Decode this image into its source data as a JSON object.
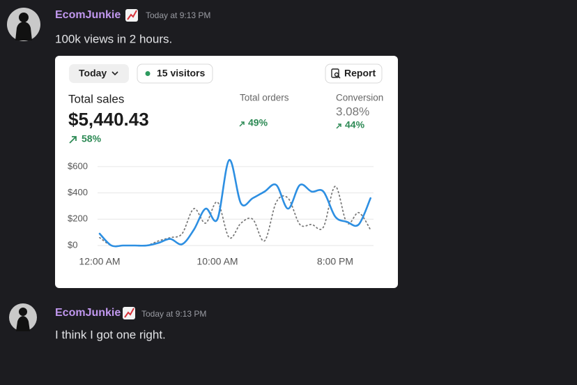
{
  "messages": [
    {
      "author": "EcomJunkie",
      "timestamp": "Today at 9:13 PM",
      "text": "100k views in 2 hours."
    },
    {
      "author": "EcomJunkie",
      "timestamp": "Today at 9:13 PM",
      "text": "I think I got one right."
    }
  ],
  "embed": {
    "controls": {
      "date": "Today",
      "visitors": "15 visitors",
      "report": "Report"
    },
    "metrics": [
      {
        "label": "Total sales",
        "value": "$5,440.43",
        "change": "58%"
      },
      {
        "label": "Total orders",
        "change": "49%"
      },
      {
        "label": "Conversion",
        "value": "3.08%",
        "change": "44%"
      }
    ]
  },
  "chart_data": {
    "type": "line",
    "categories": [
      "12:00 AM",
      null,
      null,
      null,
      null,
      null,
      null,
      null,
      null,
      null,
      "10:00 AM",
      null,
      null,
      null,
      null,
      null,
      null,
      null,
      null,
      null,
      "8:00 PM",
      null,
      null,
      null
    ],
    "series": [
      {
        "color": "#2d8fe2",
        "dash": "solid",
        "values": [
          90,
          0,
          0,
          0,
          0,
          20,
          50,
          10,
          120,
          280,
          200,
          650,
          320,
          360,
          410,
          460,
          280,
          460,
          410,
          410,
          220,
          180,
          160,
          360
        ]
      },
      {
        "color": "#7a7a7a",
        "dash": "dotted",
        "values": [
          60,
          0,
          0,
          0,
          0,
          35,
          60,
          90,
          280,
          170,
          330,
          60,
          170,
          200,
          35,
          330,
          360,
          160,
          160,
          140,
          450,
          170,
          250,
          120
        ]
      }
    ],
    "ylim": [
      0,
      700
    ],
    "yticks": [
      {
        "value": 0,
        "label": "$0"
      },
      {
        "value": 200,
        "label": "$200"
      },
      {
        "value": 400,
        "label": "$400"
      },
      {
        "value": 600,
        "label": "$600"
      }
    ],
    "grid": true
  }
}
